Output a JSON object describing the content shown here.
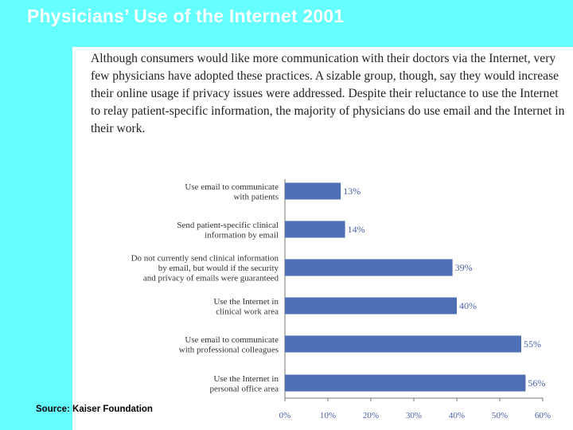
{
  "slide": {
    "title": "Physicians’ Use of the Internet 2001",
    "intro": "Although consumers would like more communication with their doctors via the Internet, very few physicians have adopted these practices. A sizable group, though, say they would increase their online usage if privacy issues were addressed. Despite their reluctance to use the Internet to relay patient-specific information, the majority of physicians do use email and the Internet in their work.",
    "source": "Source: Kaiser Foundation"
  },
  "colors": {
    "background": "#66ffff",
    "bar": "#4f6fb4",
    "value_text": "#4a62a8"
  },
  "chart_data": {
    "type": "bar",
    "orientation": "horizontal",
    "categories": [
      [
        "Use email to communicate",
        "with patients"
      ],
      [
        "Send patient-specific clinical",
        "information by email"
      ],
      [
        "Do not currently send clinical information",
        "by email, but would if the security",
        "and privacy of emails were guaranteed"
      ],
      [
        "Use the Internet in",
        "clinical work area"
      ],
      [
        "Use email to communicate",
        "with professional colleagues"
      ],
      [
        "Use the Internet in",
        "personal office area"
      ]
    ],
    "values": [
      13,
      14,
      39,
      40,
      55,
      56
    ],
    "value_labels": [
      "13%",
      "14%",
      "39%",
      "40%",
      "55%",
      "56%"
    ],
    "xlim": [
      0,
      60
    ],
    "xticks": [
      "0%",
      "10%",
      "20%",
      "30%",
      "40%",
      "50%",
      "60%"
    ],
    "grid": false
  }
}
